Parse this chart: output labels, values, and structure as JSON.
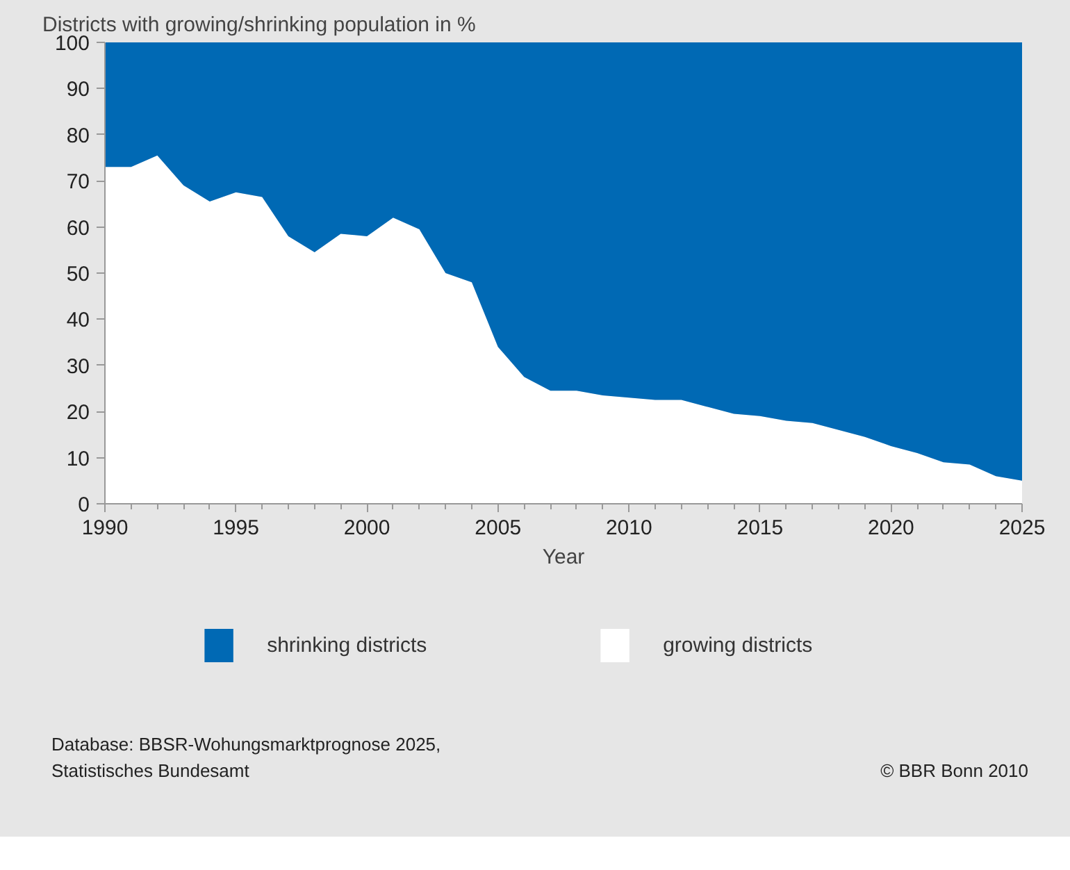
{
  "chart_data": {
    "type": "area",
    "stacked": true,
    "title": "Districts with growing/shrinking population in %",
    "xlabel": "Year",
    "x": [
      1990,
      1991,
      1992,
      1993,
      1994,
      1995,
      1996,
      1997,
      1998,
      1999,
      2000,
      2001,
      2002,
      2003,
      2004,
      2005,
      2006,
      2007,
      2008,
      2009,
      2010,
      2011,
      2012,
      2013,
      2014,
      2015,
      2016,
      2017,
      2018,
      2019,
      2020,
      2021,
      2022,
      2023,
      2024,
      2025
    ],
    "series": [
      {
        "name": "growing districts",
        "color": "#ffffff",
        "values": [
          73,
          73,
          75.5,
          69,
          65.5,
          67.5,
          66.5,
          58,
          54.5,
          58.5,
          58,
          62,
          59.5,
          50,
          48,
          34,
          27.5,
          24.5,
          24.5,
          23.5,
          23,
          22.5,
          22.5,
          21,
          19.5,
          19,
          18,
          17.5,
          16,
          14.5,
          12.5,
          11,
          9,
          8.5,
          6,
          5
        ]
      },
      {
        "name": "shrinking districts",
        "color": "#0069b4",
        "values": [
          27,
          27,
          24.5,
          31,
          34.5,
          32.5,
          33.5,
          42,
          45.5,
          41.5,
          42,
          38,
          40.5,
          50,
          52,
          66,
          72.5,
          75.5,
          75.5,
          76.5,
          77,
          77.5,
          77.5,
          79,
          80.5,
          81,
          82,
          82.5,
          84,
          85.5,
          87.5,
          89,
          91,
          91.5,
          94,
          95
        ]
      }
    ],
    "xlim": [
      1990,
      2025
    ],
    "xticks": [
      1990,
      1995,
      2000,
      2005,
      2010,
      2015,
      2020,
      2025
    ],
    "ylim": [
      0,
      100
    ],
    "yticks": [
      0,
      10,
      20,
      30,
      40,
      50,
      60,
      70,
      80,
      90,
      100
    ],
    "legend": "bottom",
    "annotations": [
      "Database: BBSR-Wohungsmarktprognose 2025,\nStatistisches Bundesamt",
      "© BBR Bonn 2010"
    ]
  }
}
